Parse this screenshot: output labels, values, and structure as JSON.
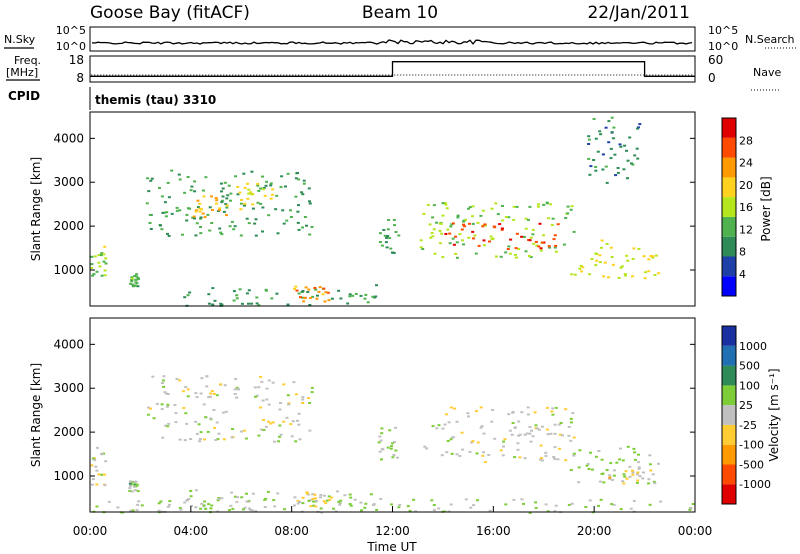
{
  "header": {
    "station": "Goose Bay (fitACF)",
    "beam": "Beam 10",
    "date": "22/Jan/2011"
  },
  "colors": {
    "trace": "#000000",
    "power_scale": [
      "#0000ff",
      "#1f3fa8",
      "#2e8b57",
      "#4fb24f",
      "#b5e61d",
      "#ffd21f",
      "#ff9a00",
      "#ff4a00",
      "#e00000"
    ],
    "velocity_scale": [
      "#e00000",
      "#ff4a00",
      "#ff9a00",
      "#ffcc33",
      "#c0c0c0",
      "#7ccd38",
      "#2e8b57",
      "#1f6fb2",
      "#1a2fa0"
    ]
  },
  "chart_data": [
    {
      "type": "line",
      "name": "nsky-panel",
      "ylabel": "N.Sky",
      "ylabel_right": "N.Search",
      "yticks_left": [
        "10^5",
        "10^0"
      ],
      "yticks_right": [
        "10^5",
        "10^0"
      ]
    },
    {
      "type": "line",
      "name": "freq-panel",
      "ylabel": "Freq.",
      "yunit": "[MHz]",
      "yticks_left": [
        "18",
        "8"
      ],
      "ylim": [
        8,
        18
      ],
      "ylabel_right": "Nave",
      "yticks_right": [
        "60",
        "0"
      ],
      "ylim_right": [
        0,
        60
      ],
      "freq_segments": [
        {
          "start": 0.0,
          "end": 12.0,
          "value": 10.2
        },
        {
          "start": 12.0,
          "end": 22.0,
          "value": 15.8
        },
        {
          "start": 22.0,
          "end": 24.0,
          "value": 10.2
        }
      ]
    },
    {
      "type": "table",
      "name": "cpid-strip",
      "label": "CPID",
      "programs": [
        {
          "start": 0.0,
          "end": 24.0,
          "text": "themis (tau) 3310"
        }
      ]
    },
    {
      "type": "heatmap",
      "name": "power-panel",
      "ylabel": "Slant Range [km]",
      "ylim": [
        180,
        4600
      ],
      "yticks": [
        1000,
        2000,
        3000,
        4000
      ],
      "xlim": [
        0,
        24
      ],
      "colorbar": {
        "label": "Power [dB]",
        "ticks": [
          "4",
          "8",
          "12",
          "16",
          "20",
          "24",
          "28"
        ],
        "range": [
          0,
          30
        ]
      },
      "regions": [
        {
          "t0": 0.0,
          "t1": 0.6,
          "r0": 800,
          "r1": 1700,
          "value": 14
        },
        {
          "t0": 1.5,
          "t1": 1.9,
          "r0": 650,
          "r1": 950,
          "value": 12
        },
        {
          "t0": 2.2,
          "t1": 8.8,
          "r0": 1800,
          "r1": 3300,
          "value": 10
        },
        {
          "t0": 4.0,
          "t1": 5.5,
          "r0": 2200,
          "r1": 2700,
          "value": 20
        },
        {
          "t0": 5.8,
          "t1": 7.2,
          "r0": 2400,
          "r1": 3000,
          "value": 18
        },
        {
          "t0": 3.5,
          "t1": 11.5,
          "r0": 200,
          "r1": 700,
          "value": 10
        },
        {
          "t0": 8.0,
          "t1": 9.6,
          "r0": 300,
          "r1": 650,
          "value": 22
        },
        {
          "t0": 11.4,
          "t1": 12.2,
          "r0": 1400,
          "r1": 2200,
          "value": 10
        },
        {
          "t0": 13.0,
          "t1": 19.2,
          "r0": 1300,
          "r1": 2600,
          "value": 14
        },
        {
          "t0": 14.0,
          "t1": 18.6,
          "r0": 1500,
          "r1": 2100,
          "value": 26
        },
        {
          "t0": 18.9,
          "t1": 22.5,
          "r0": 800,
          "r1": 1700,
          "value": 16
        },
        {
          "t0": 19.5,
          "t1": 21.8,
          "r0": 3000,
          "r1": 4500,
          "value": 8
        }
      ]
    },
    {
      "type": "heatmap",
      "name": "velocity-panel",
      "ylabel": "Slant Range [km]",
      "ylim": [
        180,
        4600
      ],
      "yticks": [
        1000,
        2000,
        3000,
        4000
      ],
      "xlim": [
        0,
        24
      ],
      "xticks": [
        "00:00",
        "04:00",
        "08:00",
        "12:00",
        "16:00",
        "20:00",
        "00:00"
      ],
      "xlabel": "Time UT",
      "colorbar": {
        "label": "Velocity [m s⁻¹]",
        "ticks": [
          "1000",
          "500",
          "100",
          "25",
          "-25",
          "-100",
          "-500",
          "-1000"
        ],
        "range": [
          -1200,
          1200
        ]
      },
      "regions": [
        {
          "t0": 0.0,
          "t1": 0.6,
          "r0": 800,
          "r1": 1700,
          "value": 0
        },
        {
          "t0": 1.5,
          "t1": 1.9,
          "r0": 650,
          "r1": 950,
          "value": 200
        },
        {
          "t0": 2.2,
          "t1": 8.8,
          "r0": 1800,
          "r1": 3300,
          "value": 0
        },
        {
          "t0": 3.5,
          "t1": 11.5,
          "r0": 200,
          "r1": 700,
          "value": 150
        },
        {
          "t0": 8.0,
          "t1": 9.6,
          "r0": 300,
          "r1": 650,
          "value": -150
        },
        {
          "t0": 11.4,
          "t1": 12.2,
          "r0": 1400,
          "r1": 2200,
          "value": 200
        },
        {
          "t0": 13.0,
          "t1": 19.2,
          "r0": 1300,
          "r1": 2600,
          "value": 0
        },
        {
          "t0": 18.9,
          "t1": 22.5,
          "r0": 800,
          "r1": 1700,
          "value": 150
        },
        {
          "t0": 20.5,
          "t1": 22.3,
          "r0": 850,
          "r1": 1150,
          "value": -200
        },
        {
          "t0": 0.0,
          "t1": 24.0,
          "r0": 180,
          "r1": 500,
          "value": 150
        }
      ]
    }
  ]
}
